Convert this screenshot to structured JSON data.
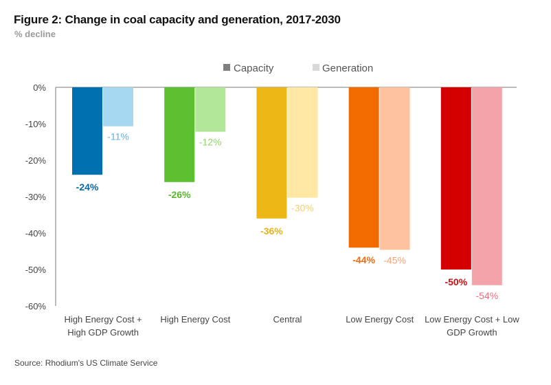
{
  "title": "Figure 2: Change in coal capacity and generation, 2017-2030",
  "subtitle": "% decline",
  "source": "Source: Rhodium's US Climate Service",
  "legend": [
    {
      "label": "Capacity",
      "color": "#7f7f7f"
    },
    {
      "label": "Generation",
      "color": "#d9d9d9"
    }
  ],
  "chart_data": {
    "type": "bar",
    "title": "Figure 2: Change in coal capacity and generation, 2017-2030",
    "subtitle": "% decline",
    "xlabel": "",
    "ylabel": "% decline",
    "ylim": [
      -60,
      0
    ],
    "yticks": [
      0,
      -10,
      -20,
      -30,
      -40,
      -50,
      -60
    ],
    "ytick_labels": [
      "0%",
      "-10%",
      "-20%",
      "-30%",
      "-40%",
      "-50%",
      "-60%"
    ],
    "grid": false,
    "legend_position": "top-center",
    "categories": [
      [
        "High Energy Cost +",
        "High GDP Growth"
      ],
      [
        "High Energy Cost"
      ],
      [
        "Central"
      ],
      [
        "Low Energy Cost"
      ],
      [
        "Low Energy Cost + Low",
        "GDP Growth"
      ]
    ],
    "series": [
      {
        "name": "Capacity",
        "values": [
          -24,
          -26,
          -36,
          -44,
          -50
        ],
        "labels": [
          "-24%",
          "-26%",
          "-36%",
          "-44%",
          "-50%"
        ],
        "colors": [
          "#0070b0",
          "#5cbf2f",
          "#ecb614",
          "#f26b00",
          "#d40000"
        ],
        "label_colors": [
          "#0a6aa8",
          "#58b82c",
          "#e5b21a",
          "#ec6a10",
          "#cc1010"
        ]
      },
      {
        "name": "Generation",
        "values": [
          -10.7,
          -12.2,
          -30.3,
          -44.6,
          -54.3
        ],
        "labels": [
          "-11%",
          "-12%",
          "-30%",
          "-45%",
          "-54%"
        ],
        "colors": [
          "#a6d8f2",
          "#b2e799",
          "#ffe8a3",
          "#ffc29e",
          "#f5a3aa"
        ],
        "label_colors": [
          "#5fb3e0",
          "#8fd36a",
          "#f2d070",
          "#f5a27a",
          "#ea6e80"
        ]
      }
    ]
  },
  "source_note": "Source: Rhodium's US Climate Service"
}
